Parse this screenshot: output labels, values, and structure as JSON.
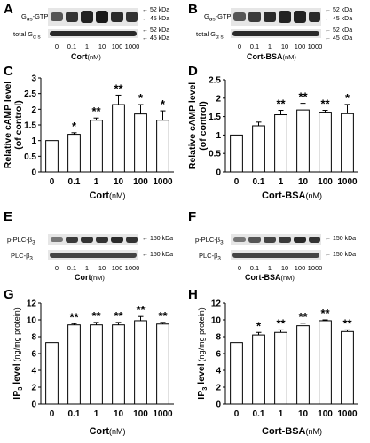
{
  "panels": {
    "A": "A",
    "B": "B",
    "C": "C",
    "D": "D",
    "E": "E",
    "F": "F",
    "G": "G",
    "H": "H"
  },
  "blots": {
    "A": {
      "top_label_main": "G",
      "top_label_sub": "αs",
      "top_label_suffix": "-GTP",
      "bottom_label_main": "total G",
      "bottom_label_sub": "α s",
      "markers": [
        "52 kDa",
        "45 kDa",
        "52 kDa",
        "45 kDa"
      ],
      "lanes": [
        "0",
        "0.1",
        "1",
        "10",
        "100",
        "1000"
      ],
      "xlabel": "Cort",
      "unit": "(nM)"
    },
    "B": {
      "top_label_main": "G",
      "top_label_sub": "αs",
      "top_label_suffix": "-GTP",
      "bottom_label_main": "total G",
      "bottom_label_sub": "α s",
      "markers": [
        "52 kDa",
        "45 kDa",
        "52 kDa",
        "45 kDa"
      ],
      "lanes": [
        "0",
        "0.1",
        "1",
        "10",
        "100",
        "1000"
      ],
      "xlabel": "Cort-BSA",
      "unit": "(nM)"
    },
    "E": {
      "top_label": "p-PLC-β",
      "top_sub": "3",
      "bottom_label": "PLC-β",
      "bottom_sub": "3",
      "markers": [
        "150 kDa",
        "150 kDa"
      ],
      "lanes": [
        "0",
        "0.1",
        "1",
        "10",
        "100",
        "1000"
      ],
      "xlabel": "Cort",
      "unit": "(nM)"
    },
    "F": {
      "top_label": "p-PLC-β",
      "top_sub": "3",
      "bottom_label": "PLC-β",
      "bottom_sub": "3",
      "markers": [
        "150 kDa",
        "150 kDa"
      ],
      "lanes": [
        "0",
        "0.1",
        "1",
        "10",
        "100",
        "1000"
      ],
      "xlabel": "Cort-BSA",
      "unit": "(nM)"
    }
  },
  "colors": {
    "ink": "#000000",
    "bar_fill": "#ffffff",
    "blot_bg": "#e6e6e6",
    "band": "#2a2a2a"
  },
  "chart_data": [
    {
      "id": "C",
      "type": "bar",
      "categories": [
        "0",
        "0.1",
        "1",
        "10",
        "100",
        "1000"
      ],
      "values": [
        1.0,
        1.2,
        1.65,
        2.15,
        1.85,
        1.65
      ],
      "errors": [
        0.0,
        0.05,
        0.07,
        0.3,
        0.3,
        0.3
      ],
      "significance": [
        "",
        "*",
        "**",
        "**",
        "*",
        "*"
      ],
      "xlabel": "Cort",
      "xunit": "(nM)",
      "ylabel_line1": "Relative cAMP level",
      "ylabel_line2": "(of control)",
      "ylim": [
        0,
        3
      ],
      "yticks": [
        "0",
        "0.5",
        "1",
        "1.5",
        "2",
        "2.5",
        "3"
      ],
      "ytick_values": [
        0,
        0.5,
        1,
        1.5,
        2,
        2.5,
        3
      ]
    },
    {
      "id": "D",
      "type": "bar",
      "categories": [
        "0",
        "0.1",
        "1",
        "10",
        "100",
        "1000"
      ],
      "values": [
        1.0,
        1.25,
        1.55,
        1.68,
        1.62,
        1.58
      ],
      "errors": [
        0.0,
        0.1,
        0.12,
        0.18,
        0.05,
        0.25
      ],
      "significance": [
        "",
        "",
        "**",
        "**",
        "**",
        "*"
      ],
      "xlabel": "Cort-BSA",
      "xunit": "(nM)",
      "ylabel_line1": "Relative cAMP level",
      "ylabel_line2": "(of control)",
      "ylim": [
        0,
        2.5
      ],
      "yticks": [
        "0",
        "0.5",
        "1",
        "1.5",
        "2",
        "2.5"
      ],
      "ytick_values": [
        0,
        0.5,
        1,
        1.5,
        2,
        2.5
      ]
    },
    {
      "id": "G",
      "type": "bar",
      "categories": [
        "0",
        "0.1",
        "1",
        "10",
        "100",
        "1000"
      ],
      "values": [
        7.3,
        9.4,
        9.4,
        9.4,
        9.9,
        9.5
      ],
      "errors": [
        0.0,
        0.15,
        0.3,
        0.3,
        0.5,
        0.2
      ],
      "significance": [
        "",
        "**",
        "**",
        "**",
        "**",
        "**"
      ],
      "xlabel": "Cort",
      "xunit": "(nM)",
      "ylabel_main": "IP",
      "ylabel_sub": "3",
      "ylabel_rest": " level",
      "ylabel_unit": "(ng/mg protein)",
      "ylim": [
        0,
        12
      ],
      "yticks": [
        "0",
        "2",
        "4",
        "6",
        "8",
        "10",
        "12"
      ],
      "ytick_values": [
        0,
        2,
        4,
        6,
        8,
        10,
        12
      ]
    },
    {
      "id": "H",
      "type": "bar",
      "categories": [
        "0",
        "0.1",
        "1",
        "10",
        "100",
        "1000"
      ],
      "values": [
        7.3,
        8.2,
        8.5,
        9.3,
        9.9,
        8.6
      ],
      "errors": [
        0.0,
        0.3,
        0.3,
        0.3,
        0.1,
        0.2
      ],
      "significance": [
        "",
        "*",
        "**",
        "**",
        "**",
        "**"
      ],
      "xlabel": "Cort-BSA",
      "xunit": "(nM)",
      "ylabel_main": "IP",
      "ylabel_sub": "3",
      "ylabel_rest": " level",
      "ylabel_unit": "(ng/mg protein)",
      "ylim": [
        0,
        12
      ],
      "yticks": [
        "0",
        "2",
        "4",
        "6",
        "8",
        "10",
        "12"
      ],
      "ytick_values": [
        0,
        2,
        4,
        6,
        8,
        10,
        12
      ]
    }
  ]
}
